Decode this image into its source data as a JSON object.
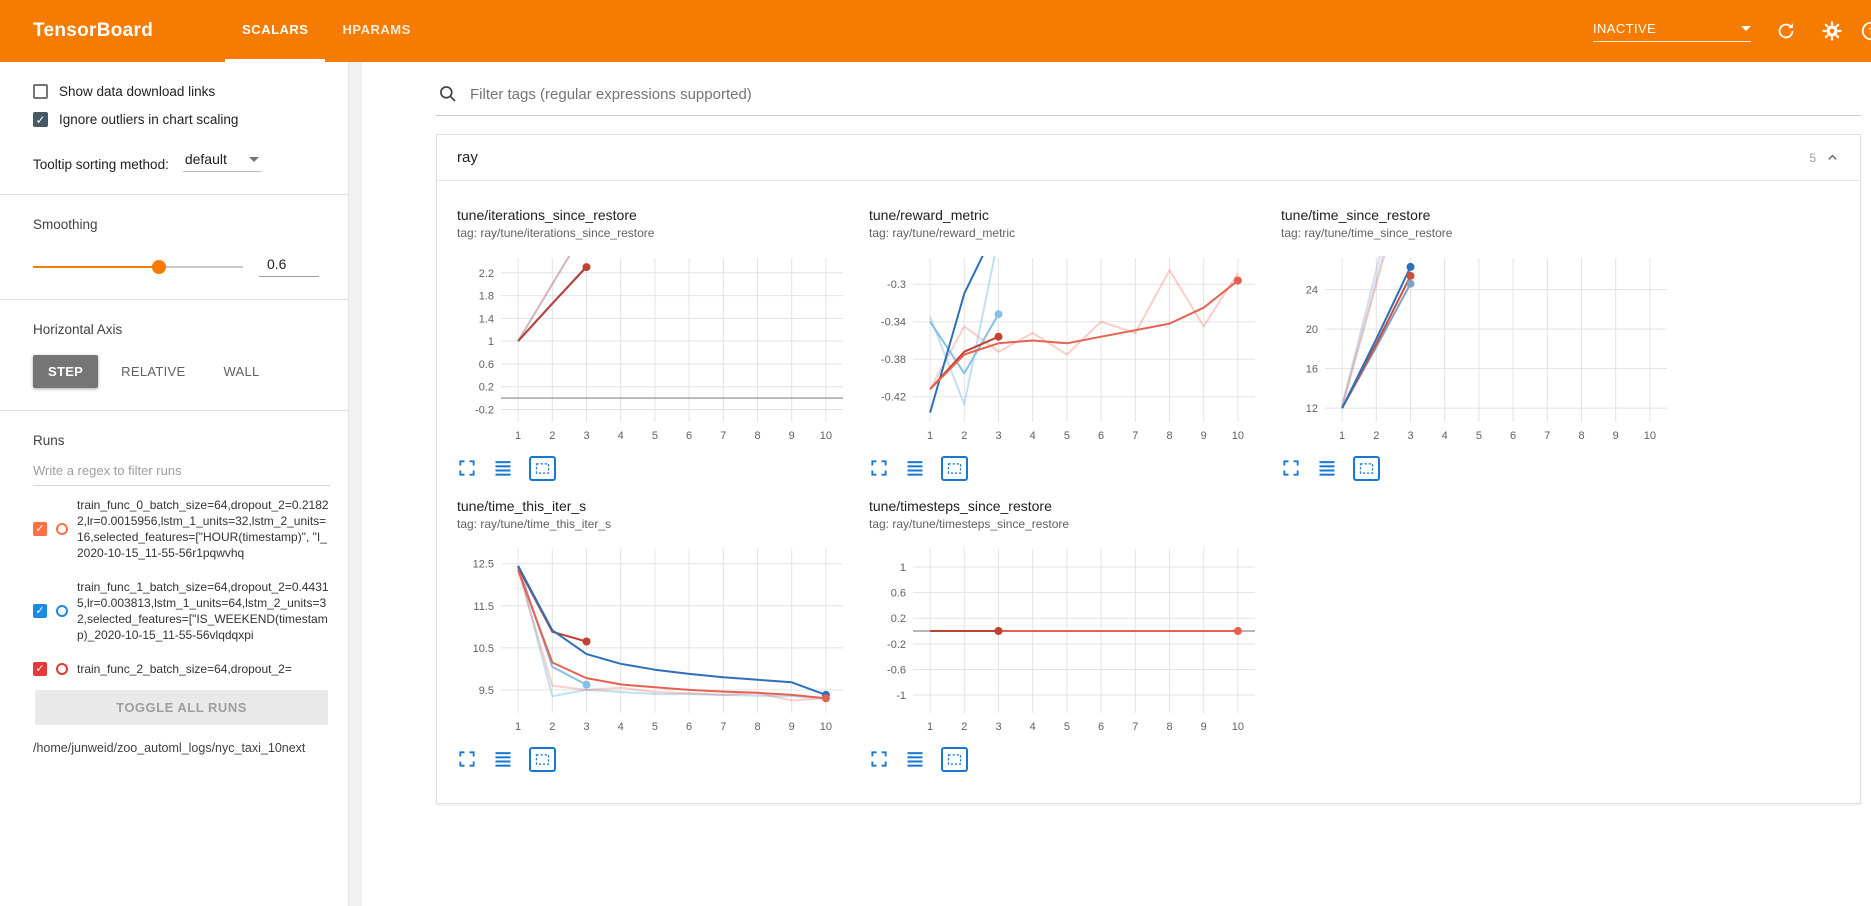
{
  "topbar": {
    "title": "TensorBoard",
    "tabs": [
      {
        "label": "SCALARS",
        "active": true
      },
      {
        "label": "HPARAMS",
        "active": false
      }
    ],
    "status": "INACTIVE",
    "colors": {
      "bar": "#f57c00",
      "accent": "#f57c00",
      "icon_blue": "#1976d2"
    }
  },
  "sidebar": {
    "checkboxes": [
      {
        "label": "Show data download links",
        "checked": false
      },
      {
        "label": "Ignore outliers in chart scaling",
        "checked": true
      }
    ],
    "tooltip_sorting": {
      "label": "Tooltip sorting method:",
      "value": "default"
    },
    "smoothing": {
      "label": "Smoothing",
      "value": "0.6",
      "fraction": 0.6
    },
    "horizontal_axis": {
      "label": "Horizontal Axis",
      "options": [
        {
          "label": "STEP",
          "active": true
        },
        {
          "label": "RELATIVE",
          "active": false
        },
        {
          "label": "WALL",
          "active": false
        }
      ]
    },
    "runs": {
      "label": "Runs",
      "filter_placeholder": "Write a regex to filter runs",
      "items": [
        {
          "color": "#ff7043",
          "checked": true,
          "label": "train_func_0_batch_size=64,dropout_2=0.21822,lr=0.0015956,lstm_1_units=32,lstm_2_units=16,selected_features=[\"HOUR(timestamp)\", \"I_2020-10-15_11-55-56r1pqwvhq"
        },
        {
          "color": "#1e88e5",
          "checked": true,
          "label": "train_func_1_batch_size=64,dropout_2=0.44315,lr=0.003813,lstm_1_units=64,lstm_2_units=32,selected_features=[\"IS_WEEKEND(timestamp)_2020-10-15_11-55-56vlqdqxpi"
        },
        {
          "color": "#e53935",
          "checked": true,
          "label": "train_func_2_batch_size=64,dropout_2="
        }
      ],
      "toggle_all_label": "TOGGLE ALL RUNS",
      "log_path": "/home/junweid/zoo_automl_logs/nyc_taxi_10next"
    }
  },
  "main": {
    "filter_placeholder": "Filter tags (regular expressions supported)",
    "card": {
      "title": "ray",
      "count": "5"
    }
  },
  "chart_data": [
    {
      "type": "line",
      "name": "tune/iterations_since_restore",
      "tag": "tag: ray/tune/iterations_since_restore",
      "xticks": [
        1,
        2,
        3,
        4,
        5,
        6,
        7,
        8,
        9,
        10
      ],
      "xlim": [
        0.5,
        10.5
      ],
      "yticks": [
        -0.2,
        0.2,
        0.6,
        1,
        1.4,
        1.8,
        2.2
      ],
      "ylim": [
        -0.42,
        2.46
      ],
      "zero_line": true,
      "series": [
        {
          "color": "#2c6fbb",
          "opacity": 0.25,
          "points": [
            [
              1,
              1
            ],
            [
              2,
              2
            ],
            [
              3,
              3
            ]
          ]
        },
        {
          "color": "#e8604f",
          "opacity": 0.3,
          "points": [
            [
              1,
              1
            ],
            [
              2,
              2
            ],
            [
              3,
              3
            ]
          ]
        },
        {
          "color": "#2c6fbb",
          "opacity": 1,
          "points": [
            [
              1,
              1
            ],
            [
              2,
              1.66
            ],
            [
              3,
              2.31
            ]
          ]
        },
        {
          "color": "#bf4232",
          "opacity": 1,
          "points": [
            [
              1,
              1
            ],
            [
              2,
              1.66
            ],
            [
              3,
              2.3
            ]
          ],
          "dot": [
            3,
            2.3
          ]
        }
      ]
    },
    {
      "type": "line",
      "name": "tune/reward_metric",
      "tag": "tag: ray/tune/reward_metric",
      "xticks": [
        1,
        2,
        3,
        4,
        5,
        6,
        7,
        8,
        9,
        10
      ],
      "xlim": [
        0.5,
        10.5
      ],
      "yticks": [
        -0.42,
        -0.38,
        -0.34,
        -0.3
      ],
      "ylim": [
        -0.447,
        -0.272
      ],
      "zero_line": false,
      "series": [
        {
          "color": "#e8604f",
          "opacity": 0.3,
          "points": [
            [
              1,
              -0.412
            ],
            [
              2,
              -0.345
            ],
            [
              3,
              -0.372
            ],
            [
              4,
              -0.352
            ],
            [
              5,
              -0.375
            ],
            [
              6,
              -0.34
            ],
            [
              7,
              -0.352
            ],
            [
              8,
              -0.285
            ],
            [
              9,
              -0.345
            ],
            [
              10,
              -0.288
            ]
          ]
        },
        {
          "color": "#85c1e5",
          "opacity": 0.5,
          "points": [
            [
              1,
              -0.335
            ],
            [
              2,
              -0.428
            ],
            [
              3,
              -0.25
            ]
          ]
        },
        {
          "color": "#85c1e5",
          "opacity": 1,
          "points": [
            [
              1,
              -0.34
            ],
            [
              2,
              -0.395
            ],
            [
              3,
              -0.332
            ]
          ],
          "dot": [
            3,
            -0.332
          ]
        },
        {
          "color": "#2c6fbb",
          "opacity": 1,
          "points": [
            [
              1,
              -0.437
            ],
            [
              2,
              -0.31
            ],
            [
              3,
              -0.235
            ]
          ]
        },
        {
          "color": "#bf4232",
          "opacity": 1,
          "points": [
            [
              1,
              -0.412
            ],
            [
              2,
              -0.372
            ],
            [
              3,
              -0.356
            ]
          ],
          "dot": [
            3,
            -0.356
          ]
        },
        {
          "color": "#e8604f",
          "opacity": 1,
          "points": [
            [
              1,
              -0.412
            ],
            [
              2,
              -0.375
            ],
            [
              3,
              -0.363
            ],
            [
              4,
              -0.36
            ],
            [
              5,
              -0.363
            ],
            [
              6,
              -0.356
            ],
            [
              7,
              -0.349
            ],
            [
              8,
              -0.342
            ],
            [
              9,
              -0.325
            ],
            [
              10,
              -0.296
            ]
          ],
          "dot": [
            10,
            -0.296
          ]
        }
      ]
    },
    {
      "type": "line",
      "name": "tune/time_since_restore",
      "tag": "tag: ray/tune/time_since_restore",
      "xticks": [
        1,
        2,
        3,
        4,
        5,
        6,
        7,
        8,
        9,
        10
      ],
      "xlim": [
        0.5,
        10.5
      ],
      "yticks": [
        12,
        16,
        20,
        24
      ],
      "ylim": [
        10.6,
        27.2
      ],
      "zero_line": false,
      "series": [
        {
          "color": "#b0a8c8",
          "opacity": 0.4,
          "points": [
            [
              1,
              12.3
            ],
            [
              2,
              26
            ],
            [
              3,
              40
            ]
          ]
        },
        {
          "color": "#85c1e5",
          "opacity": 0.4,
          "points": [
            [
              1,
              12.2
            ],
            [
              2,
              25
            ],
            [
              3,
              38
            ]
          ]
        },
        {
          "color": "#e8604f",
          "opacity": 0.3,
          "points": [
            [
              1,
              12.1
            ],
            [
              2,
              24.5
            ],
            [
              3,
              37
            ]
          ]
        },
        {
          "color": "#7f9fc6",
          "opacity": 1,
          "points": [
            [
              1,
              12
            ],
            [
              2,
              18.2
            ],
            [
              3,
              24.6
            ]
          ],
          "dot": [
            3,
            24.6
          ]
        },
        {
          "color": "#c9503c",
          "opacity": 1,
          "points": [
            [
              1,
              12
            ],
            [
              2,
              18.5
            ],
            [
              3,
              25.4
            ]
          ],
          "dot": [
            3,
            25.4
          ]
        },
        {
          "color": "#2c6fbb",
          "opacity": 1,
          "points": [
            [
              1,
              12
            ],
            [
              2,
              19
            ],
            [
              3,
              26.3
            ]
          ],
          "dot": [
            3,
            26.3
          ]
        }
      ]
    },
    {
      "type": "line",
      "name": "tune/time_this_iter_s",
      "tag": "tag: ray/tune/time_this_iter_s",
      "xticks": [
        1,
        2,
        3,
        4,
        5,
        6,
        7,
        8,
        9,
        10
      ],
      "xlim": [
        0.5,
        10.5
      ],
      "yticks": [
        9.5,
        10.5,
        11.5,
        12.5
      ],
      "ylim": [
        8.95,
        12.85
      ],
      "zero_line": false,
      "series": [
        {
          "color": "#85c1e5",
          "opacity": 0.5,
          "points": [
            [
              1,
              12.45
            ],
            [
              2,
              9.35
            ],
            [
              3,
              9.5
            ],
            [
              4,
              9.45
            ],
            [
              5,
              9.4
            ],
            [
              6,
              9.4
            ],
            [
              7,
              9.38
            ],
            [
              8,
              9.36
            ],
            [
              9,
              9.35
            ],
            [
              10,
              9.3
            ]
          ]
        },
        {
          "color": "#e8604f",
          "opacity": 0.3,
          "points": [
            [
              1,
              12.35
            ],
            [
              2,
              9.6
            ],
            [
              3,
              9.5
            ],
            [
              4,
              9.55
            ],
            [
              5,
              9.45
            ],
            [
              6,
              9.42
            ],
            [
              7,
              9.38
            ],
            [
              8,
              9.42
            ],
            [
              9,
              9.25
            ],
            [
              10,
              9.3
            ]
          ]
        },
        {
          "color": "#85c1e5",
          "opacity": 1,
          "points": [
            [
              1,
              12.45
            ],
            [
              2,
              10.05
            ],
            [
              3,
              9.62
            ]
          ],
          "dot": [
            3,
            9.62
          ]
        },
        {
          "color": "#bf4232",
          "opacity": 1,
          "points": [
            [
              1,
              12.42
            ],
            [
              2,
              10.88
            ],
            [
              3,
              10.65
            ]
          ],
          "dot": [
            3,
            10.65
          ]
        },
        {
          "color": "#2c6fbb",
          "opacity": 1,
          "points": [
            [
              1,
              12.45
            ],
            [
              2,
              10.92
            ],
            [
              3,
              10.35
            ],
            [
              4,
              10.12
            ],
            [
              5,
              9.98
            ],
            [
              6,
              9.88
            ],
            [
              7,
              9.8
            ],
            [
              8,
              9.74
            ],
            [
              9,
              9.68
            ],
            [
              10,
              9.38
            ]
          ],
          "dot": [
            10,
            9.38
          ]
        },
        {
          "color": "#e8604f",
          "opacity": 1,
          "points": [
            [
              1,
              12.35
            ],
            [
              2,
              10.15
            ],
            [
              3,
              9.78
            ],
            [
              4,
              9.63
            ],
            [
              5,
              9.56
            ],
            [
              6,
              9.5
            ],
            [
              7,
              9.46
            ],
            [
              8,
              9.43
            ],
            [
              9,
              9.38
            ],
            [
              10,
              9.3
            ]
          ],
          "dot": [
            10,
            9.3
          ]
        }
      ]
    },
    {
      "type": "line",
      "name": "tune/timesteps_since_restore",
      "tag": "tag: ray/tune/timesteps_since_restore",
      "xticks": [
        1,
        2,
        3,
        4,
        5,
        6,
        7,
        8,
        9,
        10
      ],
      "xlim": [
        0.5,
        10.5
      ],
      "yticks": [
        -1,
        -0.6,
        -0.2,
        0.2,
        0.6,
        1
      ],
      "ylim": [
        -1.28,
        1.28
      ],
      "zero_line": true,
      "series": [
        {
          "color": "#2c6fbb",
          "opacity": 1,
          "points": [
            [
              1,
              0
            ],
            [
              10,
              0
            ]
          ]
        },
        {
          "color": "#e8604f",
          "opacity": 1,
          "points": [
            [
              1,
              0
            ],
            [
              10,
              0
            ]
          ],
          "dot": [
            10,
            0
          ]
        },
        {
          "color": "#bf4232",
          "opacity": 1,
          "points": [
            [
              1,
              0
            ],
            [
              3,
              0
            ]
          ],
          "dot": [
            3,
            0
          ]
        }
      ]
    }
  ]
}
